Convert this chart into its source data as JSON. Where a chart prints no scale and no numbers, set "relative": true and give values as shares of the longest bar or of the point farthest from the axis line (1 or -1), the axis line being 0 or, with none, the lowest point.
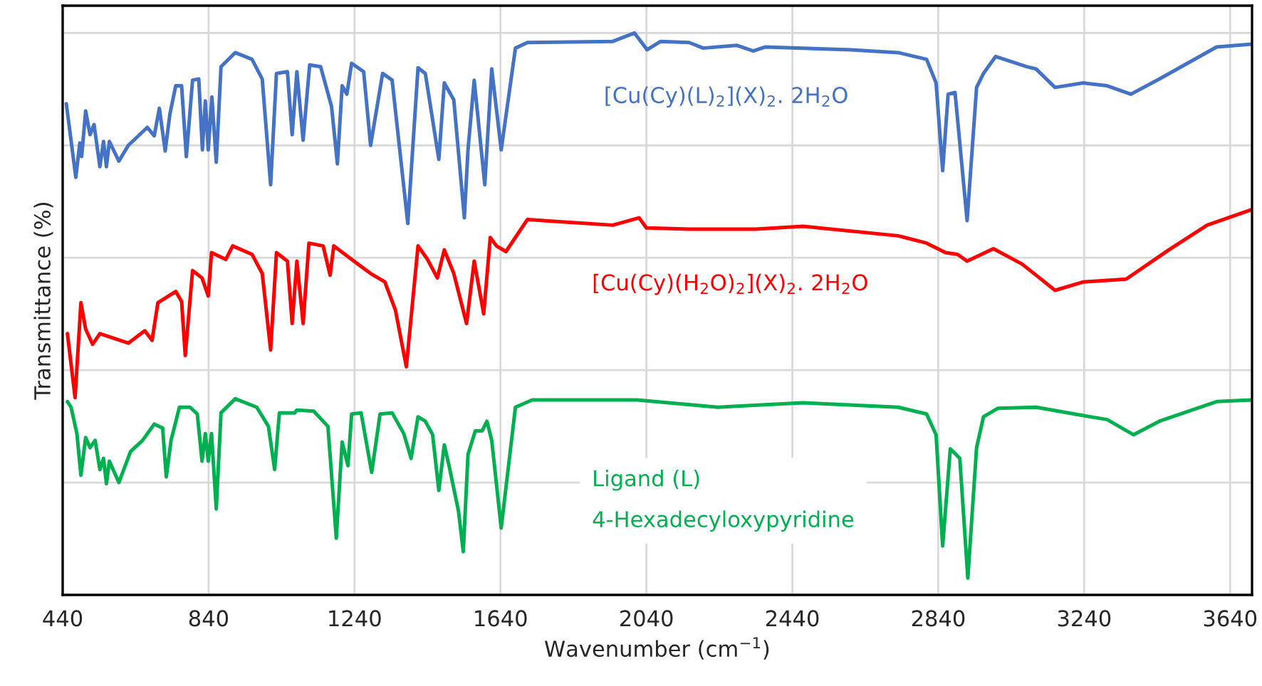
{
  "chart_data": {
    "type": "line",
    "relative": true,
    "xlabel": "Wavenumber (cm$^{−1}$)",
    "ylabel": "Transmittance (%)",
    "xlim": [
      440,
      3700
    ],
    "xticks": [
      440,
      840,
      1240,
      1640,
      2040,
      2440,
      2840,
      3240,
      3640
    ],
    "grid": true,
    "legend": false,
    "series": [
      {
        "name": "[Cu(Cy)(L)$_{2}$](X)$_{2}$. 2H$_{2}$O",
        "color": "#4472c4",
        "x": [
          450,
          476,
          487,
          492,
          503,
          515,
          526,
          542,
          552,
          560,
          568,
          594,
          620,
          672,
          691,
          705,
          721,
          734,
          750,
          766,
          779,
          796,
          813,
          823,
          831,
          839,
          849,
          861,
          874,
          913,
          959,
          987,
          1010,
          1026,
          1056,
          1069,
          1082,
          1099,
          1117,
          1147,
          1177,
          1193,
          1206,
          1219,
          1232,
          1265,
          1284,
          1317,
          1343,
          1386,
          1414,
          1434,
          1471,
          1486,
          1512,
          1541,
          1551,
          1568,
          1597,
          1616,
          1642,
          1681,
          1714,
          1948,
          2007,
          2042,
          2079,
          2157,
          2196,
          2287,
          2333,
          2365,
          2600,
          2730,
          2808,
          2834,
          2852,
          2867,
          2886,
          2919,
          2945,
          2964,
          2997,
          3082,
          3108,
          3160,
          3238,
          3303,
          3368,
          3446,
          3603,
          3700
        ],
        "values": [
          0.874,
          0.743,
          0.804,
          0.78,
          0.861,
          0.819,
          0.837,
          0.762,
          0.807,
          0.762,
          0.807,
          0.772,
          0.8,
          0.832,
          0.817,
          0.866,
          0.79,
          0.856,
          0.906,
          0.906,
          0.78,
          0.916,
          0.918,
          0.792,
          0.879,
          0.792,
          0.886,
          0.77,
          0.94,
          0.965,
          0.953,
          0.918,
          0.73,
          0.928,
          0.931,
          0.819,
          0.931,
          0.809,
          0.943,
          0.94,
          0.869,
          0.767,
          0.906,
          0.891,
          0.946,
          0.931,
          0.8,
          0.928,
          0.916,
          0.661,
          0.938,
          0.928,
          0.775,
          0.911,
          0.881,
          0.671,
          0.792,
          0.916,
          0.73,
          0.936,
          0.792,
          0.973,
          0.983,
          0.985,
          1.0,
          0.97,
          0.985,
          0.983,
          0.973,
          0.978,
          0.968,
          0.975,
          0.97,
          0.965,
          0.953,
          0.911,
          0.755,
          0.891,
          0.894,
          0.666,
          0.903,
          0.928,
          0.958,
          0.94,
          0.936,
          0.903,
          0.911,
          0.906,
          0.891,
          0.918,
          0.975,
          0.98
        ]
      },
      {
        "name": "[Cu(Cy)(H$_{2}$O)$_{2}$](X)$_{2}$. 2H$_{2}$O",
        "color": "#ff0000",
        "x": [
          453,
          474,
          490,
          503,
          522,
          542,
          620,
          665,
          685,
          701,
          750,
          766,
          776,
          796,
          822,
          839,
          848,
          887,
          906,
          959,
          987,
          1010,
          1026,
          1056,
          1069,
          1082,
          1099,
          1115,
          1154,
          1173,
          1183,
          1232,
          1284,
          1323,
          1352,
          1382,
          1414,
          1440,
          1467,
          1486,
          1512,
          1547,
          1568,
          1594,
          1612,
          1629,
          1655,
          1714,
          1948,
          2020,
          2040,
          2157,
          2339,
          2469,
          2730,
          2808,
          2860,
          2893,
          2919,
          2991,
          3069,
          3108,
          3160,
          3238,
          3355,
          3472,
          3577,
          3700
        ],
        "values": [
          0.465,
          0.351,
          0.52,
          0.473,
          0.446,
          0.465,
          0.448,
          0.47,
          0.453,
          0.52,
          0.54,
          0.522,
          0.426,
          0.577,
          0.564,
          0.532,
          0.609,
          0.597,
          0.621,
          0.606,
          0.572,
          0.436,
          0.609,
          0.594,
          0.483,
          0.594,
          0.483,
          0.626,
          0.621,
          0.569,
          0.621,
          0.597,
          0.572,
          0.557,
          0.507,
          0.406,
          0.621,
          0.597,
          0.564,
          0.614,
          0.572,
          0.483,
          0.594,
          0.5,
          0.636,
          0.621,
          0.611,
          0.668,
          0.658,
          0.671,
          0.653,
          0.651,
          0.651,
          0.656,
          0.639,
          0.626,
          0.609,
          0.606,
          0.594,
          0.616,
          0.589,
          0.569,
          0.542,
          0.557,
          0.562,
          0.614,
          0.658,
          0.686
        ]
      },
      {
        "name": "Ligand (L)\n4-Hexadecyloxypyridine",
        "color": "#00b050",
        "x": [
          453,
          463,
          479,
          490,
          503,
          515,
          529,
          542,
          552,
          560,
          568,
          594,
          626,
          659,
          691,
          714,
          724,
          737,
          760,
          789,
          809,
          822,
          831,
          839,
          848,
          861,
          874,
          913,
          972,
          1004,
          1021,
          1034,
          1076,
          1082,
          1128,
          1167,
          1190,
          1206,
          1222,
          1232,
          1258,
          1287,
          1310,
          1343,
          1375,
          1395,
          1414,
          1434,
          1454,
          1471,
          1486,
          1499,
          1525,
          1538,
          1551,
          1571,
          1590,
          1603,
          1616,
          1642,
          1681,
          1727,
          2014,
          2236,
          2469,
          2730,
          2808,
          2834,
          2852,
          2873,
          2899,
          2921,
          2945,
          2964,
          3003,
          3108,
          3238,
          3303,
          3375,
          3446,
          3603,
          3700
        ],
        "values": [
          0.344,
          0.334,
          0.287,
          0.213,
          0.28,
          0.262,
          0.275,
          0.223,
          0.243,
          0.198,
          0.238,
          0.2,
          0.255,
          0.275,
          0.304,
          0.297,
          0.21,
          0.275,
          0.334,
          0.334,
          0.322,
          0.238,
          0.287,
          0.238,
          0.287,
          0.153,
          0.324,
          0.349,
          0.334,
          0.3,
          0.223,
          0.324,
          0.324,
          0.329,
          0.327,
          0.3,
          0.101,
          0.272,
          0.23,
          0.322,
          0.324,
          0.218,
          0.322,
          0.324,
          0.287,
          0.243,
          0.317,
          0.309,
          0.285,
          0.186,
          0.267,
          0.23,
          0.149,
          0.077,
          0.25,
          0.292,
          0.292,
          0.309,
          0.275,
          0.119,
          0.334,
          0.347,
          0.347,
          0.334,
          0.342,
          0.334,
          0.322,
          0.285,
          0.087,
          0.26,
          0.243,
          0.03,
          0.262,
          0.317,
          0.332,
          0.334,
          0.319,
          0.312,
          0.285,
          0.309,
          0.344,
          0.347
        ]
      }
    ]
  }
}
